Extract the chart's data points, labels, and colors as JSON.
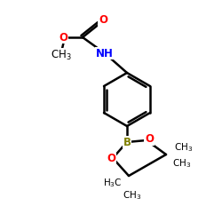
{
  "background_color": "#ffffff",
  "atom_colors": {
    "O": "#ff0000",
    "N": "#0000ff",
    "B": "#808000",
    "C": "#000000"
  },
  "figsize": [
    2.5,
    2.5
  ],
  "dpi": 100,
  "lw": 1.8,
  "fs": 8.5,
  "fs_small": 7.5
}
